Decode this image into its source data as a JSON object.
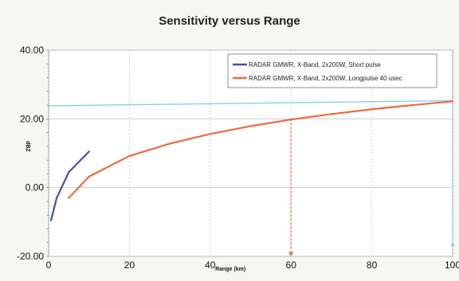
{
  "chart_data": {
    "type": "line",
    "title": "Sensitivity versus Range",
    "xlabel": "Range (km)",
    "ylabel": "dBZ",
    "xlim": [
      0,
      100
    ],
    "ylim": [
      -20,
      40
    ],
    "x_ticks": [
      "0",
      "20",
      "40",
      "60",
      "80",
      "100"
    ],
    "y_ticks": [
      "40.00",
      "20.00",
      "0.00",
      "-20.00"
    ],
    "grid": true,
    "legend_position": "top-right",
    "series": [
      {
        "name": "RADAR GMWR, X-Band, 2x200W, Short pulse",
        "color": "#4a4fb0",
        "x": [
          0.6,
          2,
          5,
          10
        ],
        "y": [
          -9.5,
          -3,
          4.5,
          10.5
        ]
      },
      {
        "name": "RADAR GMWR, X-Band, 2x200W, Longpulse 40 usec",
        "color": "#ee6a3c",
        "x": [
          5,
          10,
          20,
          30,
          40,
          50,
          60,
          70,
          80,
          90,
          100
        ],
        "y": [
          -3,
          3.2,
          9.2,
          12.8,
          15.6,
          17.9,
          19.8,
          21.4,
          22.8,
          24.0,
          25.1
        ]
      }
    ],
    "reference_lines": [
      {
        "kind": "sloped",
        "color": "#7fd3ea",
        "x": [
          0,
          100
        ],
        "y": [
          23.8,
          25.3
        ]
      },
      {
        "kind": "vertical-dashed",
        "color": "#e0704a",
        "x": 60,
        "y_from": 20.0,
        "y_to": -20
      },
      {
        "kind": "vertical-dashed",
        "color": "#7fd3ea",
        "x": 100,
        "y_from": 25.3,
        "y_to": -17.5
      }
    ]
  }
}
